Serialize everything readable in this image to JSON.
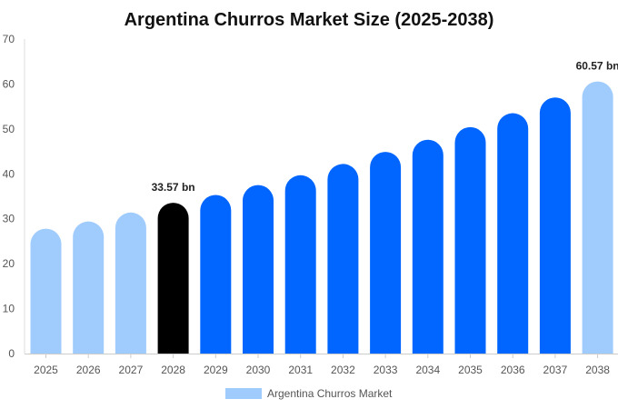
{
  "chart_data": {
    "type": "bar",
    "title": "Argentina Churros Market Size (2025-2038)",
    "categories": [
      "2025",
      "2026",
      "2027",
      "2028",
      "2029",
      "2030",
      "2031",
      "2032",
      "2033",
      "2034",
      "2035",
      "2036",
      "2037",
      "2038"
    ],
    "series": [
      {
        "name": "Argentina Churros Market",
        "values": [
          27.8,
          29.4,
          31.4,
          33.57,
          35.3,
          37.5,
          39.7,
          42.2,
          44.9,
          47.6,
          50.4,
          53.5,
          57.0,
          60.57
        ]
      }
    ],
    "bar_colors": [
      "#a0cbfd",
      "#a0cbfd",
      "#a0cbfd",
      "#000000",
      "#0066ff",
      "#0066ff",
      "#0066ff",
      "#0066ff",
      "#0066ff",
      "#0066ff",
      "#0066ff",
      "#0066ff",
      "#0066ff",
      "#a0cbfd"
    ],
    "data_labels": [
      {
        "index": 3,
        "text": "33.57 bn"
      },
      {
        "index": 13,
        "text": "60.57 bn"
      }
    ],
    "y_ticks": [
      0,
      10,
      20,
      30,
      40,
      50,
      60,
      70
    ],
    "ylim": [
      0,
      70
    ],
    "legend": {
      "label": "Argentina Churros Market",
      "color": "#a0cbfd",
      "position": "bottom"
    },
    "xlabel": "",
    "ylabel": "",
    "grid": false
  }
}
